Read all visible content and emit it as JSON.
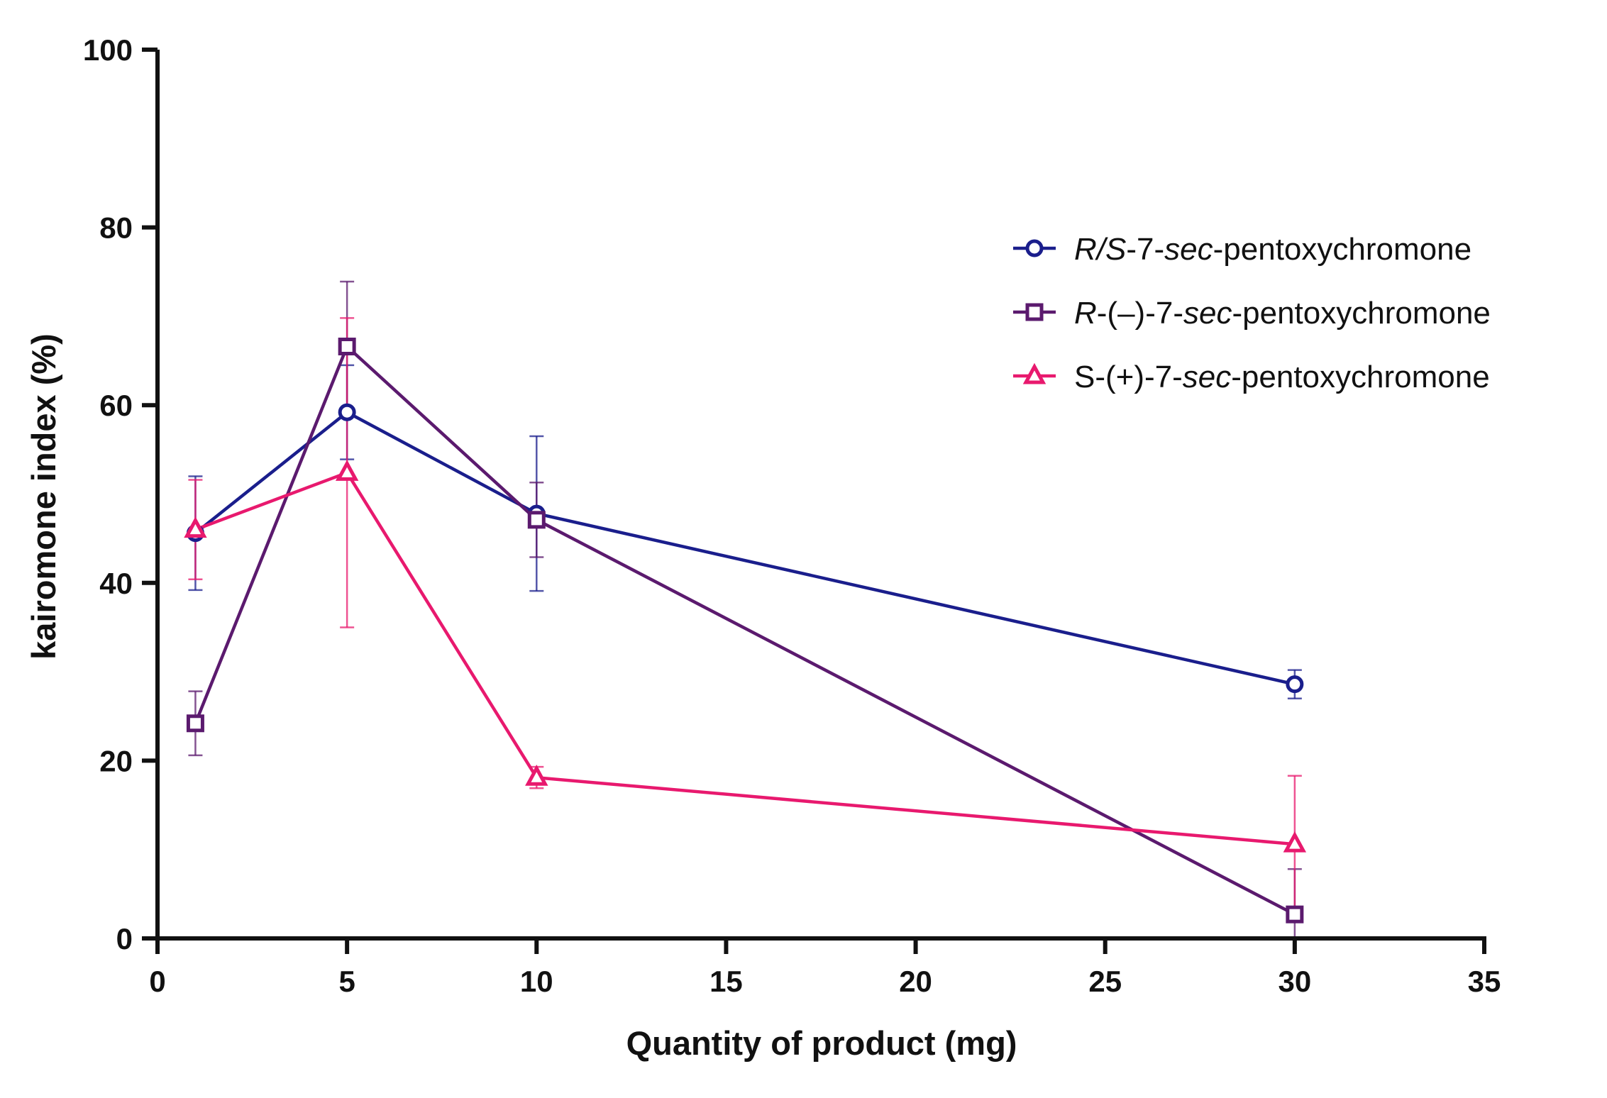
{
  "chart_data": {
    "type": "line",
    "title": "",
    "xlabel": "Quantity of product (mg)",
    "ylabel": "kairomone index (%)",
    "xlim": [
      0,
      35
    ],
    "ylim": [
      0,
      100
    ],
    "x_ticks": [
      0,
      5,
      10,
      15,
      20,
      25,
      30,
      35
    ],
    "y_ticks": [
      0,
      20,
      40,
      60,
      80,
      100
    ],
    "x_tick_labels": [
      "0",
      "5",
      "10",
      "15",
      "20",
      "25",
      "30",
      "35"
    ],
    "y_tick_labels": [
      "0",
      "20",
      "40",
      "60",
      "80",
      "100"
    ],
    "grid": false,
    "legend_position": "top-right",
    "x": [
      1,
      5,
      10,
      30
    ],
    "series": [
      {
        "name": "R/S-7-sec-pentoxychromone",
        "label_parts": [
          {
            "text": "R/S",
            "italic": true
          },
          {
            "text": "-7-",
            "italic": false
          },
          {
            "text": "sec",
            "italic": true
          },
          {
            "text": "-pentoxychromone",
            "italic": false
          }
        ],
        "marker": "circle",
        "color": "#1a1e8c",
        "values": [
          45.6,
          59.2,
          47.8,
          28.6
        ],
        "error": [
          6.4,
          5.3,
          8.7,
          1.6
        ]
      },
      {
        "name": "R-(–)-7-sec-pentoxychromone",
        "label_parts": [
          {
            "text": "R",
            "italic": true
          },
          {
            "text": "-(–)-7-",
            "italic": false
          },
          {
            "text": "sec",
            "italic": true
          },
          {
            "text": "-pentoxychromone",
            "italic": false
          }
        ],
        "marker": "square",
        "color": "#5b1a6e",
        "values": [
          24.2,
          66.6,
          47.1,
          2.7
        ],
        "error": [
          3.6,
          7.3,
          4.2,
          5.1
        ]
      },
      {
        "name": "S-(+)-7-sec-pentoxychromone",
        "label_parts": [
          {
            "text": "S-(+)-7-",
            "italic": false
          },
          {
            "text": "sec",
            "italic": true
          },
          {
            "text": "-pentoxychromone",
            "italic": false
          }
        ],
        "marker": "triangle",
        "color": "#e8196e",
        "values": [
          46.0,
          52.4,
          18.1,
          10.6
        ],
        "error": [
          5.6,
          17.4,
          1.2,
          7.7
        ]
      }
    ]
  }
}
